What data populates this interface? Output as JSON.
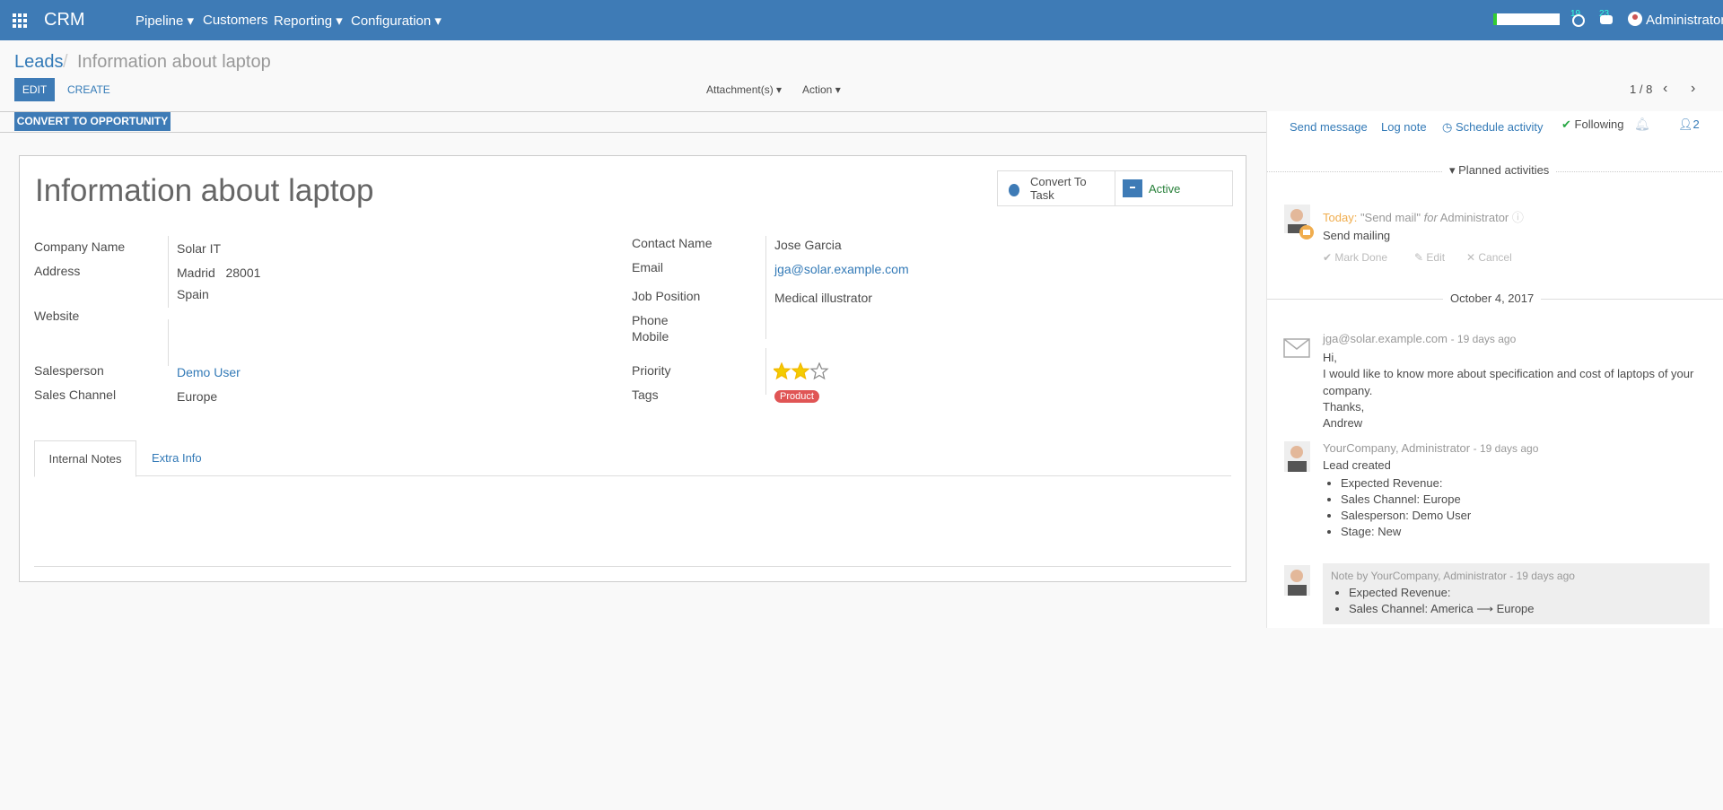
{
  "navbar": {
    "app": "CRM",
    "menu": [
      "Pipeline",
      "Customers",
      "Reporting",
      "Configuration"
    ],
    "badges": [
      "19",
      "23"
    ],
    "user": "Administrator"
  },
  "breadcrumb": {
    "parent": "Leads",
    "current": "Information about laptop"
  },
  "buttons": {
    "edit": "EDIT",
    "create": "CREATE",
    "attachments": "Attachment(s)",
    "action": "Action",
    "pager": "1 / 8",
    "convert": "CONVERT TO OPPORTUNITY"
  },
  "form": {
    "title": "Information about laptop",
    "smart_buttons": {
      "task": "Convert To Task",
      "active": "Active"
    },
    "left": [
      {
        "label": "Company Name",
        "value": "Solar IT"
      },
      {
        "label": "Address",
        "value": "Madrid   28001"
      },
      {
        "label": null,
        "value": "Spain"
      },
      {
        "label": "Website",
        "value": null
      },
      {
        "label": "Salesperson",
        "value": "Demo User"
      },
      {
        "label": "Sales Channel",
        "value": "Europe"
      }
    ],
    "right": [
      {
        "label": "Contact Name",
        "value": "Jose Garcia"
      },
      {
        "label": "Email",
        "value": "jga@solar.example.com"
      },
      {
        "label": "Job Position",
        "value": "Medical illustrator"
      },
      {
        "label": "Phone",
        "value": null
      },
      {
        "label": "Mobile",
        "value": null
      },
      {
        "label": "Priority",
        "value": null
      },
      {
        "label": "Tags",
        "value": "Product"
      }
    ],
    "tabs": [
      "Internal Notes",
      "Extra Info"
    ]
  },
  "chatter": {
    "actions": [
      "Send message",
      "Log note",
      "Schedule activity"
    ],
    "following": "Following",
    "followers": "2",
    "planned": "Planned activities",
    "activity": {
      "when": "Today:",
      "summary": "\"Send mail\"",
      "for": "for",
      "user": "Administrator",
      "note": "Send mailing",
      "mark_done": "Mark Done",
      "edit": "Edit",
      "cancel": "Cancel"
    },
    "date_separator": "October 4, 2017",
    "messages": [
      {
        "author": "jga@solar.example.com",
        "date": "- 19 days ago",
        "body": [
          "Hi,",
          "I would like to know more about specification and cost of laptops of your",
          "company.",
          "Thanks,",
          "Andrew"
        ]
      },
      {
        "author": "YourCompany, Administrator",
        "date": "- 19 days ago",
        "body": [
          "Lead created"
        ],
        "tracking": [
          "Expected Revenue:",
          "Sales Channel: Europe",
          "Salesperson: Demo User",
          "Stage: New"
        ]
      },
      {
        "author": "Note by YourCompany, Administrator",
        "date": "- 19 days ago",
        "tracking": [
          "Expected Revenue:",
          "Sales Channel: America ⟶ Europe"
        ]
      }
    ]
  }
}
